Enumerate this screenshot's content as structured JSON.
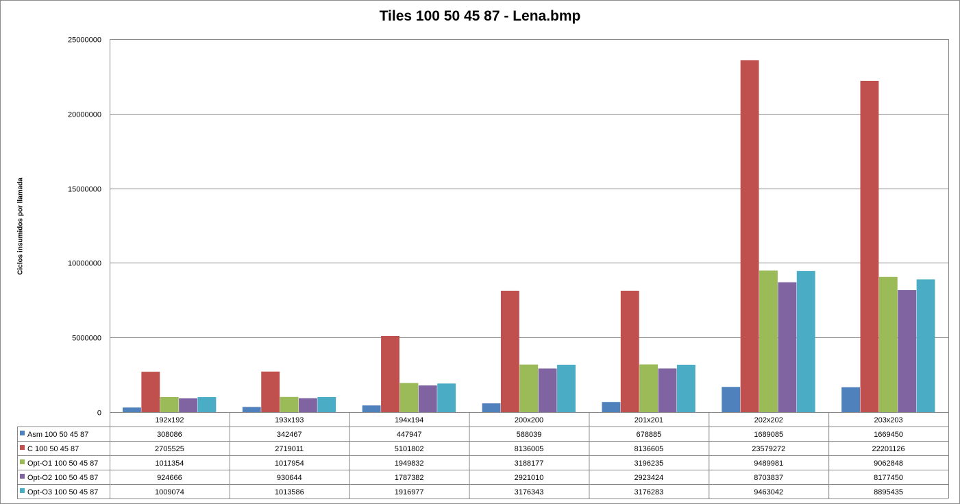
{
  "chart_data": {
    "type": "bar",
    "title": "Tiles 100 50 45 87 - Lena.bmp",
    "xlabel": "",
    "ylabel": "Ciclos insumidos por llamada",
    "ylim": [
      0,
      25000000
    ],
    "yticks": [
      "25000000",
      "20000000",
      "15000000",
      "10000000",
      "5000000",
      "0"
    ],
    "grid": true,
    "legend": "data-table",
    "categories": [
      "192x192",
      "193x193",
      "194x194",
      "200x200",
      "201x201",
      "202x202",
      "203x203"
    ],
    "series": [
      {
        "name": "Asm 100 50 45 87",
        "color": "#4f81bd",
        "values": [
          308086,
          342467,
          447947,
          588039,
          678885,
          1689085,
          1669450
        ]
      },
      {
        "name": "C  100 50 45 87",
        "color": "#c0504d",
        "values": [
          2705525,
          2719011,
          5101802,
          8136005,
          8136605,
          23579272,
          22201126
        ]
      },
      {
        "name": "Opt-O1  100 50 45 87",
        "color": "#9bbb59",
        "values": [
          1011354,
          1017954,
          1949832,
          3188177,
          3196235,
          9489981,
          9062848
        ]
      },
      {
        "name": "Opt-O2  100 50 45 87",
        "color": "#8064a2",
        "values": [
          924666,
          930644,
          1787382,
          2921010,
          2923424,
          8703837,
          8177450
        ]
      },
      {
        "name": "Opt-O3  100 50 45 87",
        "color": "#4bacc6",
        "values": [
          1009074,
          1013586,
          1916977,
          3176343,
          3176283,
          9463042,
          8895435
        ]
      }
    ]
  }
}
